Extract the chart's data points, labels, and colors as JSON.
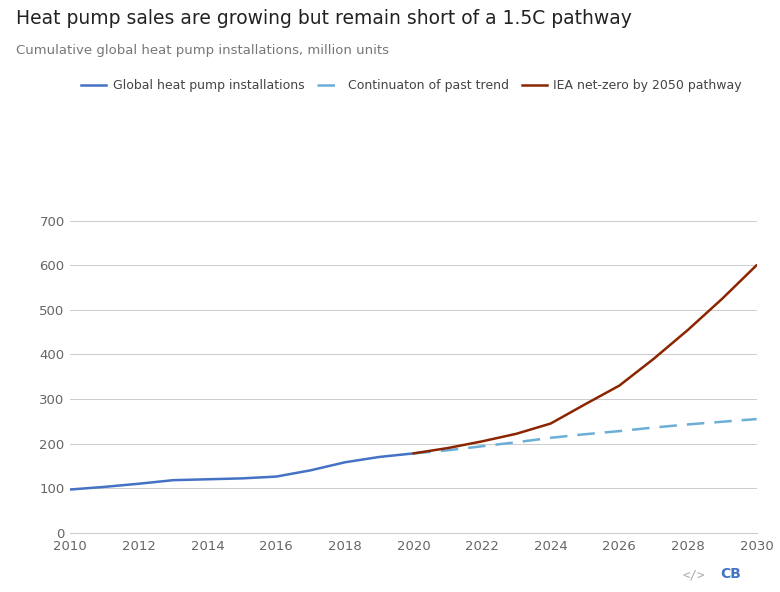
{
  "title": "Heat pump sales are growing but remain short of a 1.5C pathway",
  "subtitle": "Cumulative global heat pump installations, million units",
  "title_fontsize": 13.5,
  "subtitle_fontsize": 9.5,
  "actual_x": [
    2010,
    2011,
    2012,
    2013,
    2014,
    2015,
    2016,
    2017,
    2018,
    2019,
    2020
  ],
  "actual_y": [
    97,
    103,
    110,
    118,
    120,
    122,
    126,
    140,
    158,
    170,
    178
  ],
  "trend_x": [
    2020,
    2021,
    2022,
    2023,
    2024,
    2025,
    2026,
    2027,
    2028,
    2029,
    2030
  ],
  "trend_y": [
    178,
    185,
    194,
    203,
    213,
    221,
    228,
    236,
    243,
    249,
    255
  ],
  "iea_x": [
    2020,
    2021,
    2022,
    2023,
    2024,
    2025,
    2026,
    2027,
    2028,
    2029,
    2030
  ],
  "iea_y": [
    178,
    190,
    205,
    222,
    245,
    288,
    330,
    390,
    455,
    525,
    600
  ],
  "actual_color": "#4472c4",
  "trend_color": "#6baed6",
  "iea_color": "#8b2500",
  "legend_labels": [
    "Global heat pump installations",
    "Continuaton of past trend",
    "IEA net-zero by 2050 pathway"
  ],
  "xlim": [
    2010,
    2030
  ],
  "ylim": [
    0,
    730
  ],
  "yticks": [
    0,
    100,
    200,
    300,
    400,
    500,
    600,
    700
  ],
  "xticks": [
    2010,
    2012,
    2014,
    2016,
    2018,
    2020,
    2022,
    2024,
    2026,
    2028,
    2030
  ],
  "background_color": "#ffffff",
  "grid_color": "#cccccc",
  "logo_color_code": "#aaaaaa",
  "logo_color_cb": "#4472c4"
}
